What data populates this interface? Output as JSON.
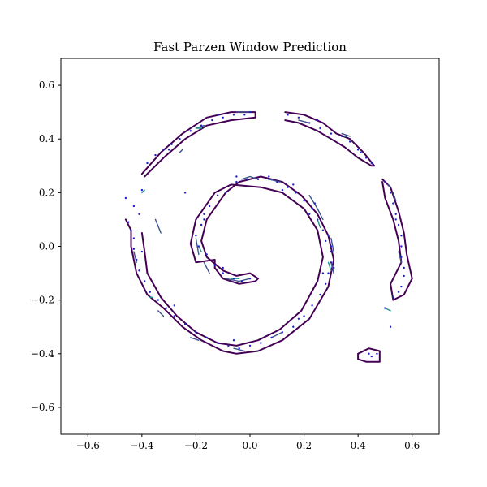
{
  "chart_data": {
    "type": "scatter",
    "title": "Fast Parzen Window Prediction",
    "xlabel": "",
    "ylabel": "",
    "xlim": [
      -0.7,
      0.7
    ],
    "ylim": [
      -0.7,
      0.7
    ],
    "xticks": [
      -0.6,
      -0.4,
      -0.2,
      0.0,
      0.2,
      0.4,
      0.6
    ],
    "yticks": [
      -0.6,
      -0.4,
      -0.2,
      0.0,
      0.2,
      0.4,
      0.6
    ],
    "xtick_labels": [
      "−0.6",
      "−0.4",
      "−0.2",
      "0.0",
      "0.2",
      "0.4",
      "0.6"
    ],
    "ytick_labels": [
      "−0.6",
      "−0.4",
      "−0.2",
      "0.0",
      "0.2",
      "0.4",
      "0.6"
    ],
    "grid": false,
    "colors": {
      "points": "#1f1fd6",
      "contour_outer": "#440154",
      "contour_mid": "#3b528b",
      "contour_inner": "#21918c",
      "contour_core": "#5ec962"
    },
    "spiral": {
      "a": 0.095,
      "t_start": 1.1,
      "t_end": 6.3,
      "center": [
        0.0,
        0.0
      ]
    },
    "contours": [
      {
        "level": "outer",
        "segments": [
          [
            [
              -0.13,
              -0.08
            ],
            [
              -0.1,
              -0.12
            ],
            [
              -0.04,
              -0.14
            ],
            [
              0.02,
              -0.13
            ],
            [
              0.03,
              -0.12
            ],
            [
              0.0,
              -0.1
            ],
            [
              -0.05,
              -0.11
            ],
            [
              -0.1,
              -0.09
            ],
            [
              -0.16,
              -0.04
            ],
            [
              -0.18,
              0.02
            ],
            [
              -0.16,
              0.1
            ],
            [
              -0.09,
              0.2
            ],
            [
              -0.04,
              0.24
            ],
            [
              0.04,
              0.26
            ],
            [
              0.12,
              0.24
            ],
            [
              0.19,
              0.19
            ],
            [
              0.25,
              0.12
            ],
            [
              0.29,
              0.04
            ],
            [
              0.31,
              -0.05
            ],
            [
              0.29,
              -0.15
            ],
            [
              0.22,
              -0.27
            ],
            [
              0.12,
              -0.35
            ],
            [
              0.03,
              -0.39
            ],
            [
              -0.05,
              -0.4
            ],
            [
              -0.1,
              -0.39
            ],
            [
              -0.18,
              -0.35
            ],
            [
              -0.25,
              -0.3
            ],
            [
              -0.32,
              -0.23
            ],
            [
              -0.38,
              -0.18
            ],
            [
              -0.42,
              -0.1
            ],
            [
              -0.44,
              0.0
            ],
            [
              -0.44,
              0.06
            ],
            [
              -0.46,
              0.1
            ]
          ],
          [
            [
              -0.13,
              -0.08
            ],
            [
              -0.13,
              -0.05
            ],
            [
              -0.2,
              -0.06
            ],
            [
              -0.22,
              0.01
            ],
            [
              -0.2,
              0.1
            ],
            [
              -0.13,
              0.2
            ],
            [
              -0.07,
              0.23
            ],
            [
              0.04,
              0.22
            ],
            [
              0.12,
              0.2
            ],
            [
              0.2,
              0.14
            ],
            [
              0.25,
              0.06
            ],
            [
              0.27,
              -0.04
            ],
            [
              0.25,
              -0.13
            ],
            [
              0.19,
              -0.24
            ],
            [
              0.11,
              -0.31
            ],
            [
              0.03,
              -0.35
            ],
            [
              -0.05,
              -0.37
            ],
            [
              -0.12,
              -0.36
            ],
            [
              -0.2,
              -0.32
            ],
            [
              -0.27,
              -0.26
            ],
            [
              -0.33,
              -0.19
            ],
            [
              -0.38,
              -0.1
            ],
            [
              -0.39,
              -0.02
            ],
            [
              -0.4,
              0.05
            ]
          ],
          [
            [
              -0.4,
              0.27
            ],
            [
              -0.33,
              0.35
            ],
            [
              -0.25,
              0.42
            ],
            [
              -0.16,
              0.48
            ],
            [
              -0.07,
              0.5
            ],
            [
              0.02,
              0.5
            ],
            [
              0.02,
              0.48
            ],
            [
              -0.07,
              0.47
            ],
            [
              -0.16,
              0.45
            ],
            [
              -0.24,
              0.4
            ],
            [
              -0.32,
              0.33
            ],
            [
              -0.37,
              0.28
            ],
            [
              -0.39,
              0.26
            ]
          ],
          [
            [
              0.13,
              0.5
            ],
            [
              0.2,
              0.49
            ],
            [
              0.27,
              0.46
            ],
            [
              0.32,
              0.42
            ],
            [
              0.37,
              0.4
            ],
            [
              0.42,
              0.35
            ],
            [
              0.46,
              0.3
            ],
            [
              0.45,
              0.3
            ],
            [
              0.4,
              0.33
            ],
            [
              0.35,
              0.37
            ],
            [
              0.3,
              0.4
            ],
            [
              0.25,
              0.43
            ],
            [
              0.18,
              0.46
            ],
            [
              0.13,
              0.47
            ]
          ],
          [
            [
              0.49,
              0.25
            ],
            [
              0.52,
              0.22
            ],
            [
              0.55,
              0.13
            ],
            [
              0.57,
              0.05
            ],
            [
              0.58,
              -0.03
            ],
            [
              0.6,
              -0.12
            ],
            [
              0.57,
              -0.18
            ],
            [
              0.53,
              -0.2
            ],
            [
              0.52,
              -0.14
            ],
            [
              0.56,
              -0.06
            ],
            [
              0.55,
              0.02
            ],
            [
              0.53,
              0.1
            ],
            [
              0.5,
              0.18
            ],
            [
              0.49,
              0.24
            ]
          ],
          [
            [
              0.4,
              -0.4
            ],
            [
              0.44,
              -0.38
            ],
            [
              0.48,
              -0.39
            ],
            [
              0.48,
              -0.43
            ],
            [
              0.43,
              -0.43
            ],
            [
              0.4,
              -0.42
            ],
            [
              0.4,
              -0.4
            ]
          ]
        ]
      },
      {
        "level": "mid",
        "segments": [
          [
            [
              -0.03,
              0.25
            ],
            [
              0.0,
              0.26
            ],
            [
              0.03,
              0.25
            ]
          ],
          [
            [
              0.07,
              0.25
            ],
            [
              0.11,
              0.24
            ]
          ],
          [
            [
              0.22,
              0.19
            ],
            [
              0.25,
              0.14
            ],
            [
              0.27,
              0.1
            ]
          ],
          [
            [
              0.3,
              0.03
            ],
            [
              0.31,
              -0.02
            ]
          ],
          [
            [
              0.3,
              -0.06
            ],
            [
              0.31,
              -0.1
            ]
          ],
          [
            [
              -0.2,
              0.03
            ],
            [
              -0.19,
              -0.03
            ]
          ],
          [
            [
              -0.17,
              -0.06
            ],
            [
              -0.15,
              -0.1
            ]
          ],
          [
            [
              -0.09,
              -0.12
            ],
            [
              -0.04,
              -0.13
            ],
            [
              0.0,
              -0.12
            ]
          ],
          [
            [
              -0.35,
              0.1
            ],
            [
              -0.33,
              0.05
            ]
          ],
          [
            [
              -0.43,
              -0.02
            ],
            [
              -0.42,
              -0.06
            ]
          ],
          [
            [
              -0.34,
              -0.24
            ],
            [
              -0.32,
              -0.26
            ]
          ],
          [
            [
              -0.22,
              -0.34
            ],
            [
              -0.19,
              -0.35
            ]
          ],
          [
            [
              -0.06,
              -0.38
            ],
            [
              -0.02,
              -0.39
            ]
          ],
          [
            [
              0.08,
              -0.34
            ],
            [
              0.12,
              -0.32
            ]
          ],
          [
            [
              -0.2,
              0.44
            ],
            [
              -0.17,
              0.45
            ]
          ],
          [
            [
              -0.05,
              0.5
            ],
            [
              0.0,
              0.5
            ]
          ],
          [
            [
              0.18,
              0.47
            ],
            [
              0.22,
              0.46
            ]
          ],
          [
            [
              0.34,
              0.42
            ],
            [
              0.37,
              0.41
            ]
          ],
          [
            [
              0.51,
              0.23
            ],
            [
              0.52,
              0.22
            ]
          ],
          [
            [
              0.53,
              0.2
            ],
            [
              0.54,
              0.17
            ]
          ],
          [
            [
              0.55,
              -0.02
            ],
            [
              0.56,
              -0.06
            ]
          ],
          [
            [
              -0.26,
              0.35
            ],
            [
              -0.25,
              0.36
            ]
          ]
        ]
      },
      {
        "level": "inner",
        "segments": [
          [
            [
              0.25,
              0.1
            ],
            [
              0.26,
              0.07
            ]
          ],
          [
            [
              0.29,
              -0.06
            ],
            [
              0.3,
              -0.09
            ]
          ],
          [
            [
              -0.19,
              0.0
            ],
            [
              -0.18,
              -0.02
            ]
          ],
          [
            [
              -0.07,
              -0.12
            ],
            [
              -0.04,
              -0.12
            ]
          ],
          [
            [
              -0.2,
              0.44
            ],
            [
              -0.18,
              0.44
            ]
          ],
          [
            [
              0.35,
              0.41
            ],
            [
              0.36,
              0.41
            ]
          ],
          [
            [
              -0.39,
              0.21
            ],
            [
              -0.4,
              0.2
            ]
          ],
          [
            [
              0.5,
              -0.23
            ],
            [
              0.52,
              -0.24
            ]
          ],
          [
            [
              -0.37,
              -0.19
            ],
            [
              -0.36,
              -0.19
            ]
          ]
        ]
      }
    ],
    "points": [
      [
        -0.1,
        -0.1
      ],
      [
        -0.06,
        -0.12
      ],
      [
        -0.03,
        -0.13
      ],
      [
        0.0,
        -0.12
      ],
      [
        -0.13,
        -0.07
      ],
      [
        -0.16,
        -0.03
      ],
      [
        -0.19,
        0.0
      ],
      [
        -0.2,
        0.04
      ],
      [
        -0.18,
        0.08
      ],
      [
        -0.17,
        0.12
      ],
      [
        -0.15,
        0.15
      ],
      [
        -0.12,
        0.19
      ],
      [
        -0.09,
        0.2
      ],
      [
        -0.05,
        0.24
      ],
      [
        -0.01,
        0.25
      ],
      [
        0.03,
        0.25
      ],
      [
        0.07,
        0.25
      ],
      [
        0.1,
        0.24
      ],
      [
        0.14,
        0.22
      ],
      [
        0.17,
        0.2
      ],
      [
        0.2,
        0.17
      ],
      [
        0.23,
        0.14
      ],
      [
        0.25,
        0.1
      ],
      [
        0.27,
        0.06
      ],
      [
        0.28,
        0.02
      ],
      [
        0.3,
        -0.02
      ],
      [
        0.3,
        -0.06
      ],
      [
        0.29,
        -0.1
      ],
      [
        0.28,
        -0.14
      ],
      [
        0.26,
        -0.18
      ],
      [
        0.23,
        -0.22
      ],
      [
        0.2,
        -0.26
      ],
      [
        0.16,
        -0.3
      ],
      [
        0.12,
        -0.32
      ],
      [
        0.08,
        -0.34
      ],
      [
        0.04,
        -0.36
      ],
      [
        0.0,
        -0.37
      ],
      [
        -0.04,
        -0.38
      ],
      [
        -0.08,
        -0.37
      ],
      [
        -0.12,
        -0.36
      ],
      [
        -0.16,
        -0.34
      ],
      [
        -0.2,
        -0.32
      ],
      [
        -0.24,
        -0.29
      ],
      [
        -0.28,
        -0.26
      ],
      [
        -0.31,
        -0.23
      ],
      [
        -0.34,
        -0.2
      ],
      [
        -0.37,
        -0.17
      ],
      [
        -0.39,
        -0.13
      ],
      [
        -0.41,
        -0.09
      ],
      [
        -0.42,
        -0.05
      ],
      [
        -0.43,
        -0.01
      ],
      [
        -0.43,
        0.03
      ],
      [
        -0.44,
        0.06
      ],
      [
        -0.45,
        0.09
      ],
      [
        -0.38,
        0.31
      ],
      [
        -0.35,
        0.34
      ],
      [
        -0.32,
        0.36
      ],
      [
        -0.29,
        0.38
      ],
      [
        -0.26,
        0.4
      ],
      [
        -0.22,
        0.43
      ],
      [
        -0.18,
        0.45
      ],
      [
        -0.14,
        0.47
      ],
      [
        -0.1,
        0.48
      ],
      [
        -0.06,
        0.49
      ],
      [
        -0.02,
        0.49
      ],
      [
        0.0,
        0.5
      ],
      [
        0.14,
        0.49
      ],
      [
        0.18,
        0.48
      ],
      [
        0.22,
        0.46
      ],
      [
        0.26,
        0.44
      ],
      [
        0.3,
        0.42
      ],
      [
        0.34,
        0.41
      ],
      [
        0.37,
        0.39
      ],
      [
        0.4,
        0.36
      ],
      [
        0.43,
        0.33
      ],
      [
        0.45,
        0.31
      ],
      [
        0.5,
        0.24
      ],
      [
        0.52,
        0.2
      ],
      [
        0.53,
        0.16
      ],
      [
        0.54,
        0.12
      ],
      [
        0.55,
        0.08
      ],
      [
        0.56,
        0.04
      ],
      [
        0.56,
        0.0
      ],
      [
        0.56,
        -0.04
      ],
      [
        0.57,
        -0.08
      ],
      [
        0.57,
        -0.11
      ],
      [
        0.56,
        -0.15
      ],
      [
        0.55,
        -0.17
      ],
      [
        0.53,
        -0.19
      ],
      [
        0.5,
        -0.23
      ],
      [
        0.52,
        -0.3
      ],
      [
        0.44,
        -0.4
      ],
      [
        0.45,
        -0.41
      ],
      [
        0.47,
        -0.4
      ],
      [
        -0.4,
        0.21
      ],
      [
        -0.46,
        0.18
      ],
      [
        -0.43,
        0.15
      ],
      [
        -0.41,
        0.12
      ],
      [
        -0.24,
        0.2
      ],
      [
        -0.1,
        -0.08
      ],
      [
        0.12,
        0.21
      ],
      [
        0.22,
        0.12
      ],
      [
        0.29,
        0.04
      ],
      [
        0.27,
        -0.1
      ],
      [
        0.18,
        -0.27
      ],
      [
        -0.06,
        -0.35
      ],
      [
        -0.28,
        -0.22
      ],
      [
        -0.4,
        -0.02
      ],
      [
        -0.3,
        0.36
      ],
      [
        -0.12,
        0.49
      ],
      [
        0.25,
        0.47
      ],
      [
        0.41,
        0.35
      ],
      [
        0.54,
        0.1
      ],
      [
        -0.17,
        0.1
      ],
      [
        -0.05,
        0.26
      ],
      [
        0.07,
        0.26
      ],
      [
        0.16,
        0.23
      ],
      [
        0.24,
        0.16
      ],
      [
        0.3,
        0.0
      ],
      [
        0.31,
        -0.08
      ]
    ]
  }
}
